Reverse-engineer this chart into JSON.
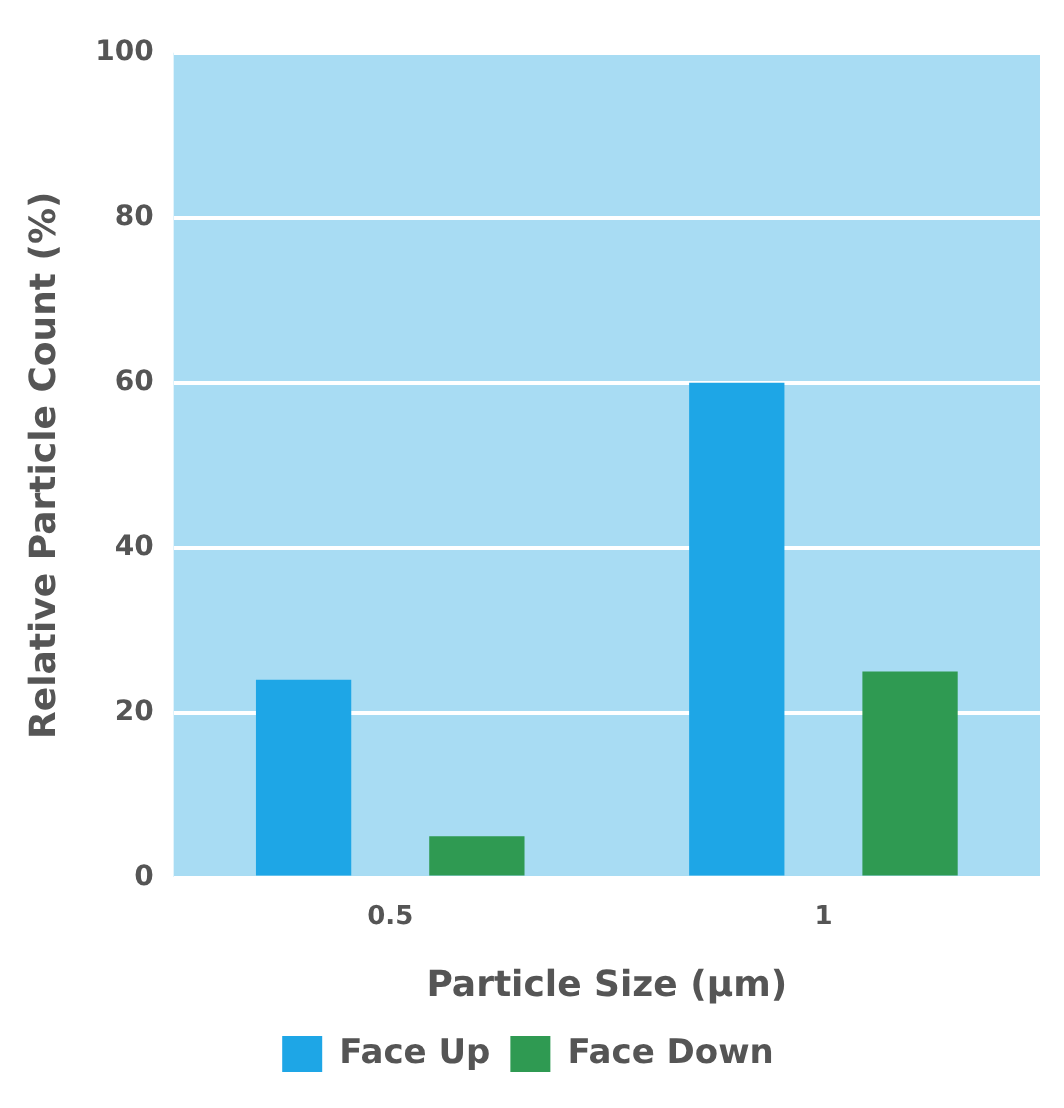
{
  "chart_data": {
    "type": "bar",
    "xlabel": "Particle Size (µm)",
    "ylabel": "Relative Particle Count (%)",
    "categories": [
      "0.5",
      "1"
    ],
    "series": [
      {
        "name": "Face Up",
        "color": "#1ea6e6",
        "values": [
          24,
          60
        ]
      },
      {
        "name": "Face Down",
        "color": "#2f9a52",
        "values": [
          5,
          25
        ]
      }
    ],
    "ylim": [
      0,
      100
    ],
    "yticks": [
      0,
      20,
      40,
      60,
      80,
      100
    ],
    "grid": "y",
    "legend": "bottom"
  }
}
